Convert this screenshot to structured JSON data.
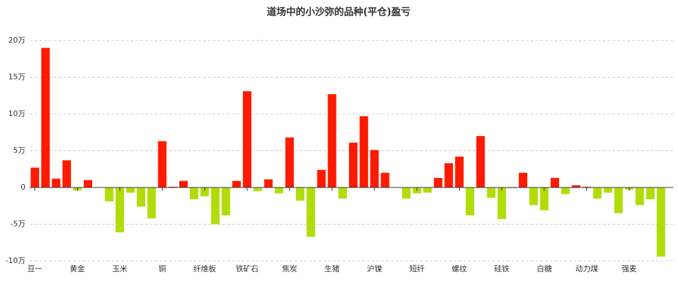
{
  "chart_data": {
    "type": "bar",
    "title": "道场中的小沙弥的品种(平仓)盈亏",
    "categories": [
      "豆一",
      null,
      null,
      null,
      "黄金",
      null,
      null,
      null,
      "玉米",
      null,
      null,
      null,
      "铜",
      null,
      null,
      null,
      "纤维板",
      null,
      null,
      null,
      "铁矿石",
      null,
      null,
      null,
      "焦炭",
      null,
      null,
      null,
      "生猪",
      null,
      null,
      null,
      "沪镍",
      null,
      null,
      null,
      "短纤",
      null,
      null,
      null,
      "螺纹",
      null,
      null,
      null,
      "硅铁",
      null,
      null,
      null,
      "白糖",
      null,
      null,
      null,
      "动力煤",
      null,
      null,
      null,
      "强麦",
      null,
      null,
      null
    ],
    "values": [
      2.7,
      19.0,
      1.2,
      3.7,
      -0.4,
      1.0,
      0,
      -1.9,
      -6.1,
      -0.7,
      -2.6,
      -4.2,
      6.3,
      0.1,
      0.9,
      -1.6,
      -1.2,
      -5.0,
      -3.8,
      0.9,
      13.1,
      -0.5,
      1.1,
      -0.8,
      6.8,
      -1.8,
      -6.7,
      2.4,
      12.7,
      -1.5,
      6.1,
      9.7,
      5.1,
      2.0,
      0,
      -1.5,
      -0.8,
      -0.7,
      1.3,
      3.3,
      4.2,
      -3.8,
      7.0,
      -1.4,
      -4.3,
      -0.1,
      2.0,
      -2.4,
      -3.1,
      1.3,
      -0.9,
      0.3,
      0.1,
      -1.5,
      -0.7,
      -3.5,
      -0.3,
      -2.4,
      -1.6,
      -9.4
    ],
    "color_positive": "#ff1a00",
    "color_negative": "#b0dd0a",
    "ylim": [
      -10,
      20
    ],
    "yticks": [
      {
        "value": -10,
        "label": "-10万"
      },
      {
        "value": -5,
        "label": "-5万"
      },
      0,
      {
        "value": 5,
        "label": "5万"
      },
      {
        "value": 10,
        "label": "10万"
      },
      {
        "value": 15,
        "label": "15万"
      },
      {
        "value": 20,
        "label": "20万"
      }
    ],
    "grid": true
  }
}
